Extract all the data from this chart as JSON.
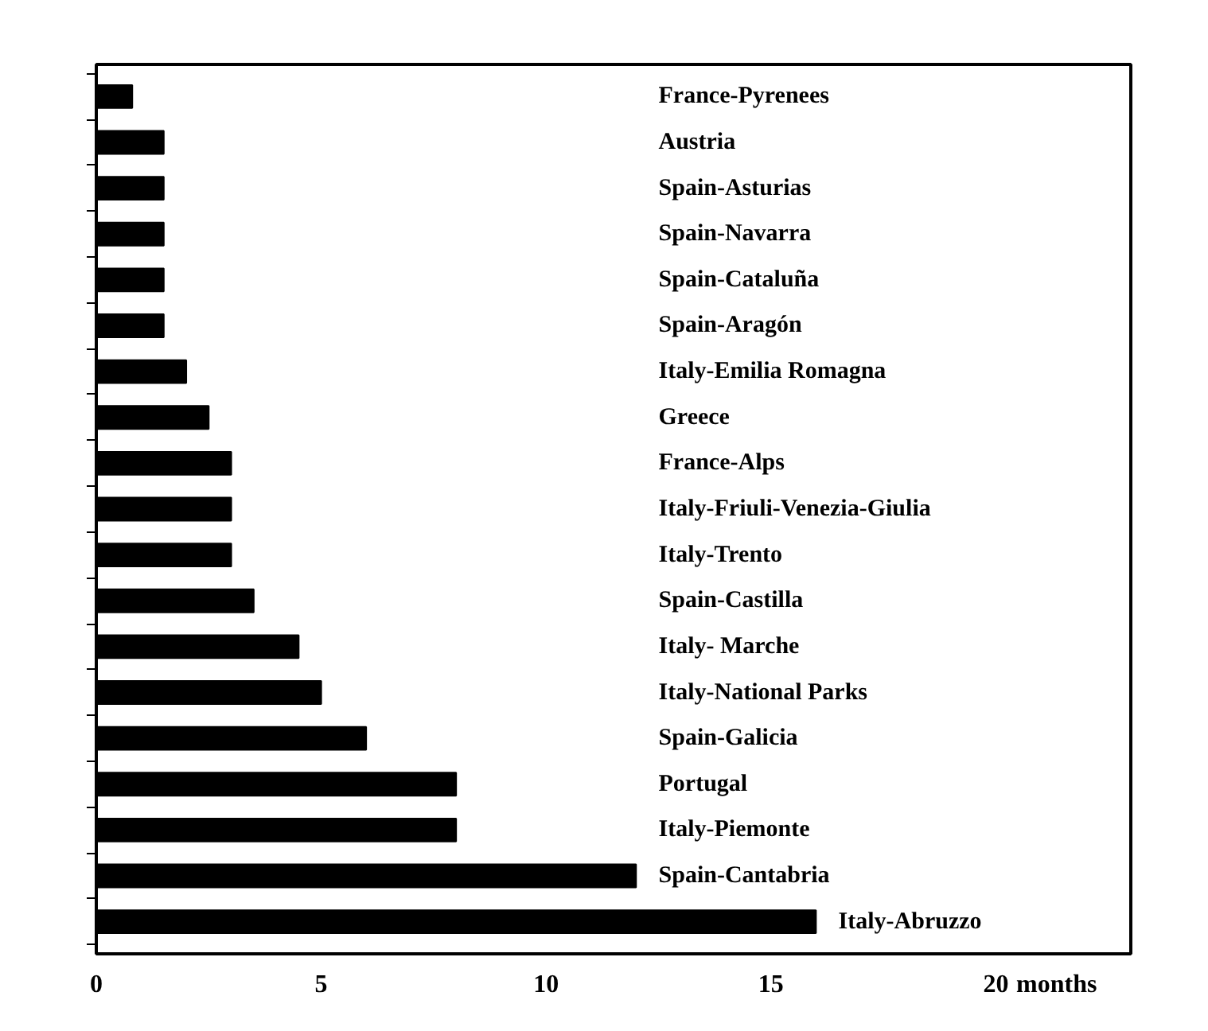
{
  "chart_data": {
    "type": "bar",
    "orientation": "horizontal",
    "xlabel": "months",
    "categories": [
      "France-Pyrenees",
      "Austria",
      "Spain-Asturias",
      "Spain-Navarra",
      "Spain-Cataluña",
      "Spain-Aragón",
      "Italy-Emilia Romagna",
      "Greece",
      "France-Alps",
      "Italy-Friuli-Venezia-Giulia",
      "Italy-Trento",
      "Spain-Castilla",
      "Italy- Marche",
      "Italy-National Parks",
      "Spain-Galicia",
      "Portugal",
      "Italy-Piemonte",
      "Spain-Cantabria",
      "Italy-Abruzzo"
    ],
    "values": [
      0.8,
      1.5,
      1.5,
      1.5,
      1.5,
      1.5,
      2,
      2.5,
      3,
      3,
      3,
      3.5,
      4.5,
      5,
      6,
      8,
      8,
      12,
      16
    ],
    "color": "#000000",
    "xlim": [
      0,
      23
    ],
    "xticks": [
      0,
      5,
      10,
      15,
      20
    ],
    "grid": false,
    "tick_labels": "x"
  }
}
